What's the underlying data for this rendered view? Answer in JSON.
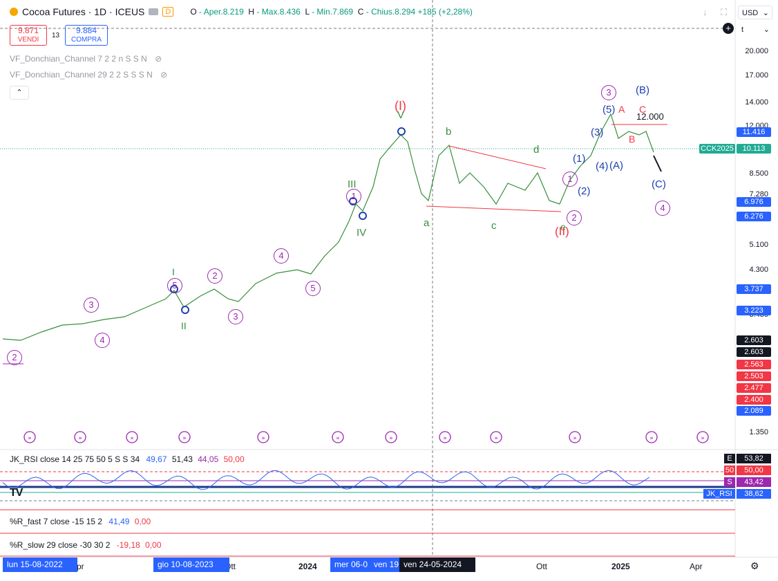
{
  "header": {
    "title": "Cocoa Futures · 1D · ICEUS",
    "open_label": "O",
    "open": "- Aper.8.219",
    "high_label": "H",
    "high": "- Max.8.436",
    "low_label": "L",
    "low": "- Min.7.869",
    "close_label": "C",
    "close": "- Chius.8.294",
    "change": "+185 (+2,28%)",
    "badge_d": "D",
    "sell_price": "9.871",
    "sell_label": "VENDI",
    "spread": "13",
    "buy_price": "9.884",
    "buy_label": "COMPRA",
    "currency": "USD",
    "unit": "t"
  },
  "indicators": [
    {
      "label": "VF_Donchian_Channel 7 2 2 n S S N"
    },
    {
      "label": "VF_Donchian_Channel 29 2 2 S S S N"
    }
  ],
  "price_axis": [
    "20.000",
    "17.000",
    "14.000",
    "12.000",
    "8.500",
    "7.280",
    "5.100",
    "4.300",
    "3.480",
    "1.350"
  ],
  "price_tags": [
    {
      "text": "11.416",
      "color": "#2962ff"
    },
    {
      "text": "CCK2025",
      "color": "#22ab94"
    },
    {
      "text": "10.113",
      "color": "#22ab94"
    },
    {
      "text": "6.976",
      "color": "#2962ff"
    },
    {
      "text": "6.276",
      "color": "#2962ff"
    },
    {
      "text": "3.737",
      "color": "#2962ff"
    },
    {
      "text": "3.223",
      "color": "#2962ff"
    },
    {
      "text": "2.603",
      "color": "#131722"
    },
    {
      "text": "2.603",
      "color": "#131722"
    },
    {
      "text": "2.563",
      "color": "#f23645"
    },
    {
      "text": "2.503",
      "color": "#f23645"
    },
    {
      "text": "2.477",
      "color": "#f23645"
    },
    {
      "text": "2.400",
      "color": "#f23645"
    },
    {
      "text": "2.089",
      "color": "#2962ff"
    }
  ],
  "wave_labels": [
    {
      "text": "(I)",
      "color": "#f23645"
    },
    {
      "text": "V",
      "color": "#388e3c"
    },
    {
      "text": "III",
      "color": "#388e3c"
    },
    {
      "text": "IV",
      "color": "#388e3c"
    },
    {
      "text": "I",
      "color": "#388e3c"
    },
    {
      "text": "II",
      "color": "#388e3c"
    },
    {
      "text": "a",
      "color": "#388e3c"
    },
    {
      "text": "b",
      "color": "#388e3c"
    },
    {
      "text": "c",
      "color": "#388e3c"
    },
    {
      "text": "d",
      "color": "#388e3c"
    },
    {
      "text": "e",
      "color": "#388e3c"
    },
    {
      "text": "(II)",
      "color": "#f23645"
    },
    {
      "text": "(1)",
      "color": "#1e40af"
    },
    {
      "text": "(2)",
      "color": "#1e40af"
    },
    {
      "text": "(3)",
      "color": "#1e40af"
    },
    {
      "text": "(4)",
      "color": "#1e40af"
    },
    {
      "text": "(5)",
      "color": "#1e40af"
    },
    {
      "text": "(A)",
      "color": "#1e40af"
    },
    {
      "text": "(B)",
      "color": "#1e40af"
    },
    {
      "text": "(C)",
      "color": "#1e40af"
    },
    {
      "text": "A",
      "color": "#f23645"
    },
    {
      "text": "B",
      "color": "#f23645"
    },
    {
      "text": "C",
      "color": "#f23645"
    },
    {
      "text": "12.000",
      "color": "#131722"
    }
  ],
  "circle_labels": [
    "2",
    "3",
    "4",
    "5",
    "1",
    "2",
    "3",
    "4",
    "5",
    "1",
    "2",
    "3",
    "4"
  ],
  "rsi": {
    "label": "JK_RSI close 14 25 75 50 5 S S 34",
    "v1": "49,67",
    "v2": "51,43",
    "v3": "44,05",
    "v4": "50,00",
    "tags": [
      {
        "text": "E",
        "value": "53,82",
        "color": "#131722"
      },
      {
        "text": "50",
        "value": "50,00",
        "color": "#f23645"
      },
      {
        "text": "S",
        "value": "43,42",
        "color": "#9c27b0"
      },
      {
        "text": "JK_RSI",
        "value": "38,62",
        "color": "#2962ff"
      }
    ]
  },
  "rfast": {
    "label": "%R_fast 7 close -15 15 2",
    "v1": "41,49",
    "v2": "0,00"
  },
  "rslow": {
    "label": "%R_slow 29 close -30 30 2",
    "v1": "-19,18",
    "v2": "0,00"
  },
  "time_axis": {
    "labels": [
      {
        "text": "Apr"
      },
      {
        "text": "Ott"
      },
      {
        "text": "2024"
      },
      {
        "text": "Ott"
      },
      {
        "text": "2025"
      },
      {
        "text": "Apr"
      }
    ],
    "chips": [
      {
        "text": "lun 15-08-2022"
      },
      {
        "text": "gio 10-08-2023"
      },
      {
        "text": "mer 06-0"
      },
      {
        "text": "ven 19"
      },
      {
        "text": "ven 24-05-2024"
      }
    ]
  },
  "logo": "TV"
}
